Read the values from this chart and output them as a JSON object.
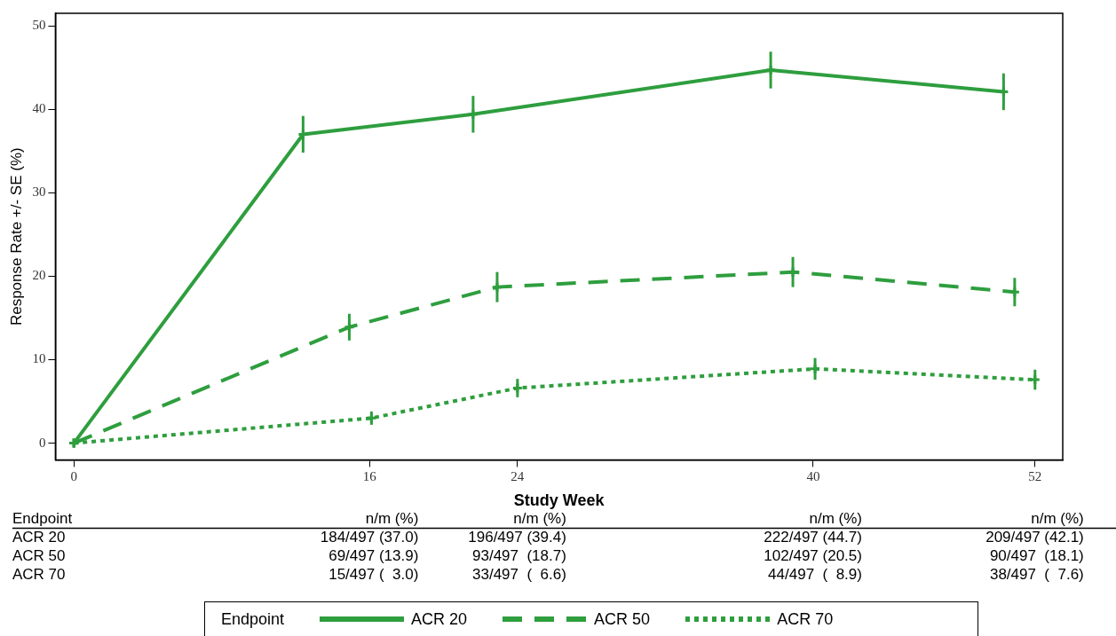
{
  "chart_data": {
    "type": "line",
    "xlabel": "Study Week",
    "ylabel": "Response Rate +/- SE (%)",
    "xlim": [
      -1,
      53.5
    ],
    "ylim": [
      -2,
      51.5
    ],
    "xticks": [
      0,
      16,
      24,
      40,
      52
    ],
    "yticks": [
      0,
      10,
      20,
      30,
      40,
      50
    ],
    "legend": "bottom",
    "marker": "cross",
    "legend_title": "Endpoint",
    "annotations": [
      "Endpoint",
      "n/m (%)",
      "n/m (%)",
      "n/m (%)",
      "n/m (%)",
      "ACR 20",
      "184/497 (37.0)",
      "196/497 (39.4)",
      "222/497 (44.7)",
      "209/497 (42.1)",
      "ACR 50",
      "69/497 (13.9)",
      "93/497  (18.7)",
      "102/497 (20.5)",
      "90/497  (18.1)",
      "ACR 70",
      "15/497 (  3.0)",
      "33/497  (  6.6)",
      "44/497  (  8.9)",
      "38/497  (  7.6)"
    ],
    "series": [
      {
        "name": "ACR 20",
        "color": "#2e9e3e",
        "line_style": "solid",
        "x": [
          0,
          12.4,
          21.6,
          37.7,
          50.3
        ],
        "values": [
          0,
          37.0,
          39.4,
          44.7,
          42.1
        ],
        "errors": [
          null,
          2.2,
          2.2,
          2.2,
          2.2
        ]
      },
      {
        "name": "ACR 50",
        "color": "#2e9e3e",
        "line_style": "dashed",
        "x": [
          0,
          14.9,
          22.9,
          38.9,
          50.9
        ],
        "values": [
          0,
          13.9,
          18.7,
          20.5,
          18.1
        ],
        "errors": [
          null,
          1.6,
          1.8,
          1.8,
          1.7
        ]
      },
      {
        "name": "ACR 70",
        "color": "#2e9e3e",
        "line_style": "dotted",
        "x": [
          0,
          16.1,
          24.0,
          40.1,
          52.0
        ],
        "values": [
          0,
          3.0,
          6.6,
          8.9,
          7.6
        ],
        "errors": [
          null,
          0.8,
          1.1,
          1.3,
          1.2
        ]
      }
    ]
  }
}
